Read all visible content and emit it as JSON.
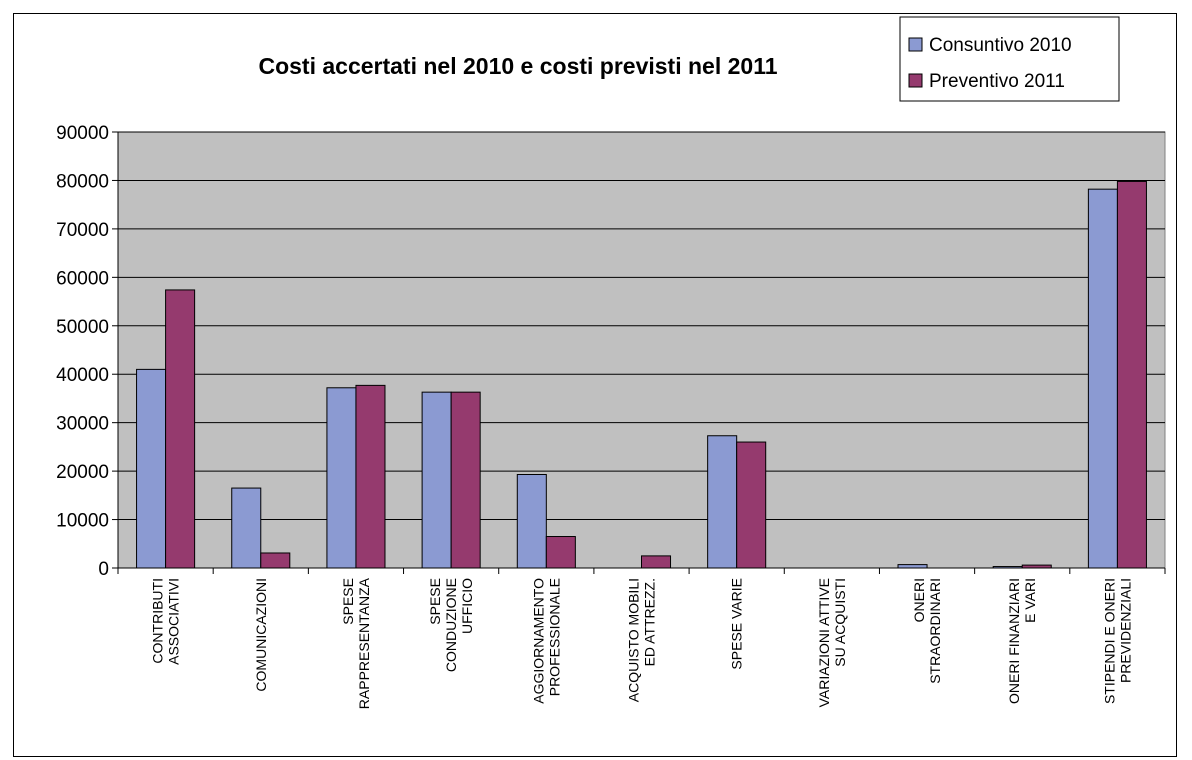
{
  "chart_data": {
    "type": "bar",
    "title": "Costi accertati nel 2010 e costi previsti nel 2011",
    "xlabel": "",
    "ylabel": "",
    "ylim": [
      0,
      90000
    ],
    "yticks": [
      "0",
      "10000",
      "20000",
      "30000",
      "40000",
      "50000",
      "60000",
      "70000",
      "80000",
      "90000"
    ],
    "grid": true,
    "legend_position": "top-right",
    "categories": [
      [
        "CONTRIBUTI",
        "ASSOCIATIVI"
      ],
      [
        "COMUNICAZIONI"
      ],
      [
        "SPESE",
        "RAPPRESENTANZA"
      ],
      [
        "SPESE",
        "CONDUZIONE",
        "UFFICIO"
      ],
      [
        "AGGIORNAMENTO",
        "PROFESSIONALE"
      ],
      [
        "ACQUISTO MOBILI",
        "ED ATTREZZ."
      ],
      [
        "SPESE VARIE"
      ],
      [
        "VARIAZIONI ATTIVE",
        "SU ACQUISTI"
      ],
      [
        "ONERI",
        "STRAORDINARI"
      ],
      [
        "ONERI FINANZIARI",
        "E VARI"
      ],
      [
        "STIPENDI E ONERI",
        "PREVIDENZIALI"
      ]
    ],
    "series": [
      {
        "name": "Consuntivo 2010",
        "color": "#8B9AD2",
        "values": [
          41000,
          16500,
          37200,
          36300,
          19300,
          0,
          27300,
          0,
          700,
          300,
          78200
        ]
      },
      {
        "name": "Preventivo 2011",
        "color": "#953A6E",
        "values": [
          57400,
          3100,
          37700,
          36300,
          6500,
          2500,
          26000,
          0,
          0,
          600,
          79800
        ]
      }
    ],
    "plot_background": "#C0C0C0"
  }
}
